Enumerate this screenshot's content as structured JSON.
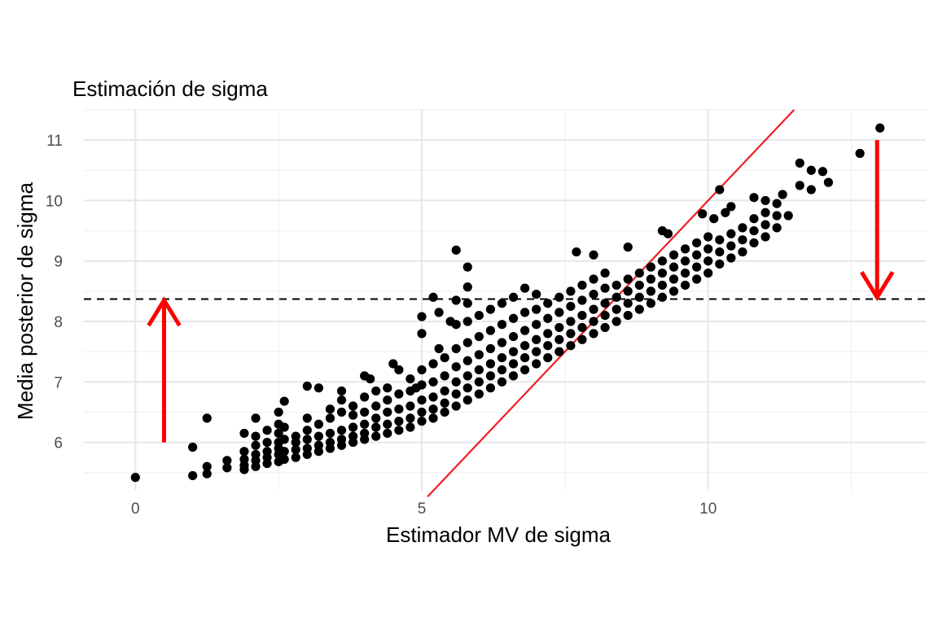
{
  "chart_data": {
    "type": "scatter",
    "title": "Estimación de sigma",
    "xlabel": "Estimador MV de sigma",
    "ylabel": "Media posterior de sigma",
    "xlim": [
      -0.9,
      13.8
    ],
    "ylim": [
      5.2,
      11.5
    ],
    "x_ticks": [
      0,
      5,
      10
    ],
    "x_tick_labels": [
      "0",
      "5",
      "10"
    ],
    "y_ticks": [
      6,
      7,
      8,
      9,
      10,
      11
    ],
    "y_tick_labels": [
      "6",
      "7",
      "8",
      "9",
      "10",
      "11"
    ],
    "grid": true,
    "colors": {
      "points": "#000000",
      "identity_line": "#ee1c25",
      "arrows": "#ff0000",
      "reference_line": "#000000"
    },
    "reference_line": {
      "orientation": "horizontal",
      "y": 8.37,
      "style": "dashed"
    },
    "identity_line": {
      "from": [
        5.1,
        5.1
      ],
      "to": [
        11.5,
        11.5
      ]
    },
    "arrows": [
      {
        "x": 0.5,
        "y_start": 6.0,
        "y_end": 8.35,
        "direction": "up"
      },
      {
        "x": 12.95,
        "y_start": 11.0,
        "y_end": 8.4,
        "direction": "down"
      }
    ],
    "points": [
      [
        0.0,
        5.42
      ],
      [
        1.0,
        5.45
      ],
      [
        1.0,
        5.92
      ],
      [
        1.25,
        5.48
      ],
      [
        1.25,
        5.6
      ],
      [
        1.25,
        6.4
      ],
      [
        1.6,
        5.58
      ],
      [
        1.6,
        5.7
      ],
      [
        1.9,
        5.55
      ],
      [
        1.9,
        5.62
      ],
      [
        1.9,
        5.72
      ],
      [
        1.9,
        5.85
      ],
      [
        1.9,
        6.15
      ],
      [
        2.1,
        5.6
      ],
      [
        2.1,
        5.7
      ],
      [
        2.1,
        5.8
      ],
      [
        2.1,
        5.95
      ],
      [
        2.1,
        6.1
      ],
      [
        2.1,
        6.4
      ],
      [
        2.3,
        5.65
      ],
      [
        2.3,
        5.75
      ],
      [
        2.3,
        5.85
      ],
      [
        2.3,
        6.0
      ],
      [
        2.3,
        6.2
      ],
      [
        2.5,
        5.68
      ],
      [
        2.5,
        5.8
      ],
      [
        2.5,
        5.9
      ],
      [
        2.5,
        6.0
      ],
      [
        2.5,
        6.15
      ],
      [
        2.5,
        6.3
      ],
      [
        2.5,
        6.5
      ],
      [
        2.6,
        5.72
      ],
      [
        2.6,
        5.85
      ],
      [
        2.6,
        6.05
      ],
      [
        2.6,
        6.25
      ],
      [
        2.6,
        6.68
      ],
      [
        2.8,
        5.75
      ],
      [
        2.8,
        5.88
      ],
      [
        2.8,
        6.0
      ],
      [
        2.8,
        6.1
      ],
      [
        3.0,
        5.8
      ],
      [
        3.0,
        5.9
      ],
      [
        3.0,
        6.05
      ],
      [
        3.0,
        6.2
      ],
      [
        3.0,
        6.4
      ],
      [
        3.0,
        6.93
      ],
      [
        3.2,
        5.85
      ],
      [
        3.2,
        5.95
      ],
      [
        3.2,
        6.1
      ],
      [
        3.2,
        6.3
      ],
      [
        3.2,
        6.9
      ],
      [
        3.4,
        5.9
      ],
      [
        3.4,
        6.0
      ],
      [
        3.4,
        6.15
      ],
      [
        3.4,
        6.4
      ],
      [
        3.4,
        6.55
      ],
      [
        3.6,
        5.95
      ],
      [
        3.6,
        6.05
      ],
      [
        3.6,
        6.2
      ],
      [
        3.6,
        6.5
      ],
      [
        3.6,
        6.7
      ],
      [
        3.6,
        6.85
      ],
      [
        3.8,
        6.0
      ],
      [
        3.8,
        6.1
      ],
      [
        3.8,
        6.25
      ],
      [
        3.8,
        6.45
      ],
      [
        3.8,
        6.6
      ],
      [
        4.0,
        6.05
      ],
      [
        4.0,
        6.15
      ],
      [
        4.0,
        6.3
      ],
      [
        4.0,
        6.5
      ],
      [
        4.0,
        6.75
      ],
      [
        4.0,
        7.1
      ],
      [
        4.1,
        7.05
      ],
      [
        4.2,
        6.1
      ],
      [
        4.2,
        6.25
      ],
      [
        4.2,
        6.4
      ],
      [
        4.2,
        6.6
      ],
      [
        4.2,
        6.85
      ],
      [
        4.4,
        6.15
      ],
      [
        4.4,
        6.3
      ],
      [
        4.4,
        6.5
      ],
      [
        4.4,
        6.7
      ],
      [
        4.4,
        6.9
      ],
      [
        4.5,
        7.3
      ],
      [
        4.6,
        6.2
      ],
      [
        4.6,
        6.35
      ],
      [
        4.6,
        6.55
      ],
      [
        4.6,
        6.8
      ],
      [
        4.6,
        7.2
      ],
      [
        4.8,
        6.25
      ],
      [
        4.8,
        6.4
      ],
      [
        4.8,
        6.6
      ],
      [
        4.8,
        6.85
      ],
      [
        4.8,
        7.05
      ],
      [
        4.9,
        6.9
      ],
      [
        5.0,
        6.35
      ],
      [
        5.0,
        6.5
      ],
      [
        5.0,
        6.7
      ],
      [
        5.0,
        6.95
      ],
      [
        5.0,
        7.2
      ],
      [
        5.0,
        7.8
      ],
      [
        5.0,
        8.08
      ],
      [
        5.2,
        6.4
      ],
      [
        5.2,
        6.55
      ],
      [
        5.2,
        6.75
      ],
      [
        5.2,
        7.0
      ],
      [
        5.2,
        7.3
      ],
      [
        5.2,
        8.4
      ],
      [
        5.3,
        8.15
      ],
      [
        5.3,
        7.55
      ],
      [
        5.4,
        6.5
      ],
      [
        5.4,
        6.65
      ],
      [
        5.4,
        6.85
      ],
      [
        5.4,
        7.1
      ],
      [
        5.4,
        7.4
      ],
      [
        5.5,
        8.0
      ],
      [
        5.6,
        6.6
      ],
      [
        5.6,
        6.8
      ],
      [
        5.6,
        7.0
      ],
      [
        5.6,
        7.25
      ],
      [
        5.6,
        7.55
      ],
      [
        5.6,
        7.95
      ],
      [
        5.6,
        8.35
      ],
      [
        5.6,
        9.18
      ],
      [
        5.8,
        6.7
      ],
      [
        5.8,
        6.9
      ],
      [
        5.8,
        7.1
      ],
      [
        5.8,
        7.35
      ],
      [
        5.8,
        7.65
      ],
      [
        5.8,
        8.0
      ],
      [
        5.8,
        8.3
      ],
      [
        5.8,
        8.57
      ],
      [
        5.8,
        8.9
      ],
      [
        6.0,
        6.8
      ],
      [
        6.0,
        7.0
      ],
      [
        6.0,
        7.2
      ],
      [
        6.0,
        7.45
      ],
      [
        6.0,
        7.75
      ],
      [
        6.0,
        8.1
      ],
      [
        6.2,
        6.9
      ],
      [
        6.2,
        7.1
      ],
      [
        6.2,
        7.3
      ],
      [
        6.2,
        7.55
      ],
      [
        6.2,
        7.85
      ],
      [
        6.2,
        8.2
      ],
      [
        6.4,
        7.0
      ],
      [
        6.4,
        7.2
      ],
      [
        6.4,
        7.4
      ],
      [
        6.4,
        7.65
      ],
      [
        6.4,
        7.95
      ],
      [
        6.4,
        8.3
      ],
      [
        6.6,
        7.1
      ],
      [
        6.6,
        7.3
      ],
      [
        6.6,
        7.5
      ],
      [
        6.6,
        7.75
      ],
      [
        6.6,
        8.05
      ],
      [
        6.6,
        8.4
      ],
      [
        6.8,
        7.2
      ],
      [
        6.8,
        7.4
      ],
      [
        6.8,
        7.6
      ],
      [
        6.8,
        7.85
      ],
      [
        6.8,
        8.15
      ],
      [
        6.8,
        8.55
      ],
      [
        7.0,
        7.3
      ],
      [
        7.0,
        7.5
      ],
      [
        7.0,
        7.7
      ],
      [
        7.0,
        7.95
      ],
      [
        7.0,
        8.2
      ],
      [
        7.0,
        8.45
      ],
      [
        7.2,
        7.4
      ],
      [
        7.2,
        7.6
      ],
      [
        7.2,
        7.8
      ],
      [
        7.2,
        8.05
      ],
      [
        7.2,
        8.3
      ],
      [
        7.4,
        7.5
      ],
      [
        7.4,
        7.7
      ],
      [
        7.4,
        7.9
      ],
      [
        7.4,
        8.15
      ],
      [
        7.4,
        8.4
      ],
      [
        7.6,
        7.6
      ],
      [
        7.6,
        7.8
      ],
      [
        7.6,
        8.0
      ],
      [
        7.6,
        8.25
      ],
      [
        7.6,
        8.5
      ],
      [
        7.8,
        7.7
      ],
      [
        7.8,
        7.9
      ],
      [
        7.8,
        8.1
      ],
      [
        7.8,
        8.35
      ],
      [
        7.8,
        8.6
      ],
      [
        7.7,
        9.15
      ],
      [
        8.0,
        7.8
      ],
      [
        8.0,
        8.0
      ],
      [
        8.0,
        8.2
      ],
      [
        8.0,
        8.45
      ],
      [
        8.0,
        8.7
      ],
      [
        8.0,
        9.1
      ],
      [
        8.2,
        7.9
      ],
      [
        8.2,
        8.1
      ],
      [
        8.2,
        8.3
      ],
      [
        8.2,
        8.55
      ],
      [
        8.2,
        8.8
      ],
      [
        8.4,
        8.0
      ],
      [
        8.4,
        8.2
      ],
      [
        8.4,
        8.4
      ],
      [
        8.4,
        8.6
      ],
      [
        8.6,
        8.1
      ],
      [
        8.6,
        8.3
      ],
      [
        8.6,
        8.5
      ],
      [
        8.6,
        8.7
      ],
      [
        8.6,
        9.23
      ],
      [
        8.8,
        8.2
      ],
      [
        8.8,
        8.4
      ],
      [
        8.8,
        8.6
      ],
      [
        8.8,
        8.8
      ],
      [
        9.0,
        8.3
      ],
      [
        9.0,
        8.5
      ],
      [
        9.0,
        8.7
      ],
      [
        9.0,
        8.9
      ],
      [
        9.2,
        9.5
      ],
      [
        9.3,
        9.45
      ],
      [
        9.2,
        8.4
      ],
      [
        9.2,
        8.6
      ],
      [
        9.2,
        8.8
      ],
      [
        9.2,
        9.0
      ],
      [
        9.4,
        8.5
      ],
      [
        9.4,
        8.7
      ],
      [
        9.4,
        8.9
      ],
      [
        9.4,
        9.1
      ],
      [
        9.6,
        8.6
      ],
      [
        9.6,
        8.8
      ],
      [
        9.6,
        9.0
      ],
      [
        9.6,
        9.2
      ],
      [
        9.8,
        8.7
      ],
      [
        9.8,
        8.9
      ],
      [
        9.8,
        9.1
      ],
      [
        9.8,
        9.3
      ],
      [
        9.9,
        9.78
      ],
      [
        10.0,
        8.8
      ],
      [
        10.0,
        9.0
      ],
      [
        10.0,
        9.2
      ],
      [
        10.0,
        9.4
      ],
      [
        10.1,
        9.7
      ],
      [
        10.2,
        10.18
      ],
      [
        10.2,
        8.95
      ],
      [
        10.2,
        9.15
      ],
      [
        10.2,
        9.35
      ],
      [
        10.3,
        9.8
      ],
      [
        10.4,
        9.9
      ],
      [
        10.4,
        9.05
      ],
      [
        10.4,
        9.25
      ],
      [
        10.4,
        9.45
      ],
      [
        10.6,
        9.15
      ],
      [
        10.6,
        9.35
      ],
      [
        10.6,
        9.55
      ],
      [
        10.8,
        9.3
      ],
      [
        10.8,
        9.5
      ],
      [
        10.8,
        9.7
      ],
      [
        10.8,
        10.05
      ],
      [
        11.0,
        9.4
      ],
      [
        11.0,
        9.6
      ],
      [
        11.0,
        9.8
      ],
      [
        11.0,
        10.0
      ],
      [
        11.2,
        9.55
      ],
      [
        11.2,
        9.75
      ],
      [
        11.2,
        9.95
      ],
      [
        11.3,
        10.1
      ],
      [
        11.4,
        9.75
      ],
      [
        11.6,
        10.25
      ],
      [
        11.6,
        10.62
      ],
      [
        11.8,
        10.18
      ],
      [
        11.8,
        10.5
      ],
      [
        12.0,
        10.48
      ],
      [
        12.1,
        10.3
      ],
      [
        12.65,
        10.78
      ],
      [
        13.0,
        11.2
      ]
    ]
  }
}
